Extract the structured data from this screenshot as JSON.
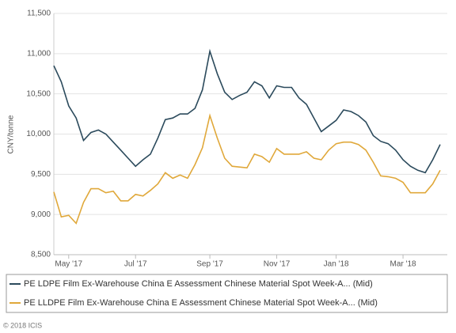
{
  "chart_data": {
    "type": "line",
    "y_label": "CNY/tonne",
    "categories": [
      null,
      null,
      "May '17",
      null,
      null,
      null,
      null,
      null,
      null,
      null,
      null,
      "Jul '17",
      null,
      null,
      null,
      null,
      null,
      null,
      null,
      null,
      null,
      "Sep '17",
      null,
      null,
      null,
      null,
      null,
      null,
      null,
      null,
      "Nov '17",
      null,
      null,
      null,
      null,
      null,
      null,
      null,
      "Jan '18",
      null,
      null,
      null,
      null,
      null,
      null,
      null,
      null,
      "Mar '18",
      null,
      null,
      null,
      null,
      null
    ],
    "series": [
      {
        "name": "PE LDPE Film Ex-Warehouse China E Assessment Chinese Material Spot Week-A... (Mid)",
        "color": "#2b4a5c",
        "values": [
          10850,
          10650,
          10350,
          10200,
          9920,
          10020,
          10050,
          10000,
          9900,
          9800,
          9700,
          9600,
          9680,
          9750,
          9950,
          10180,
          10200,
          10250,
          10250,
          10320,
          10550,
          11030,
          10750,
          10520,
          10430,
          10480,
          10520,
          10650,
          10600,
          10450,
          10600,
          10580,
          10580,
          10450,
          10370,
          10200,
          10030,
          10100,
          10170,
          10300,
          10280,
          10230,
          10150,
          9980,
          9910,
          9880,
          9800,
          9680,
          9600,
          9550,
          9520,
          9680,
          9870
        ]
      },
      {
        "name": "PE LLDPE Film Ex-Warehouse China E Assessment Chinese Material Spot Week-A... (Mid)",
        "color": "#e0a83a",
        "values": [
          9280,
          8970,
          8990,
          8890,
          9150,
          9320,
          9320,
          9270,
          9290,
          9170,
          9170,
          9250,
          9230,
          9300,
          9380,
          9520,
          9450,
          9490,
          9450,
          9620,
          9830,
          10230,
          9950,
          9700,
          9600,
          9590,
          9580,
          9750,
          9720,
          9650,
          9820,
          9750,
          9750,
          9750,
          9780,
          9700,
          9680,
          9800,
          9880,
          9900,
          9900,
          9870,
          9800,
          9650,
          9480,
          9470,
          9450,
          9400,
          9270,
          9270,
          9270,
          9380,
          9550
        ]
      }
    ],
    "ylim": [
      8500,
      11500
    ],
    "yticks": [
      {
        "value": 8500,
        "label": "8,500"
      },
      {
        "value": 9000,
        "label": "9,000"
      },
      {
        "value": 9500,
        "label": "9,500"
      },
      {
        "value": 10000,
        "label": "10,000"
      },
      {
        "value": 10500,
        "label": "10,500"
      },
      {
        "value": 11000,
        "label": "11,000"
      },
      {
        "value": 11500,
        "label": "11,500"
      }
    ],
    "grid": true,
    "legend": "bottom",
    "credit": "© 2018 ICIS"
  }
}
